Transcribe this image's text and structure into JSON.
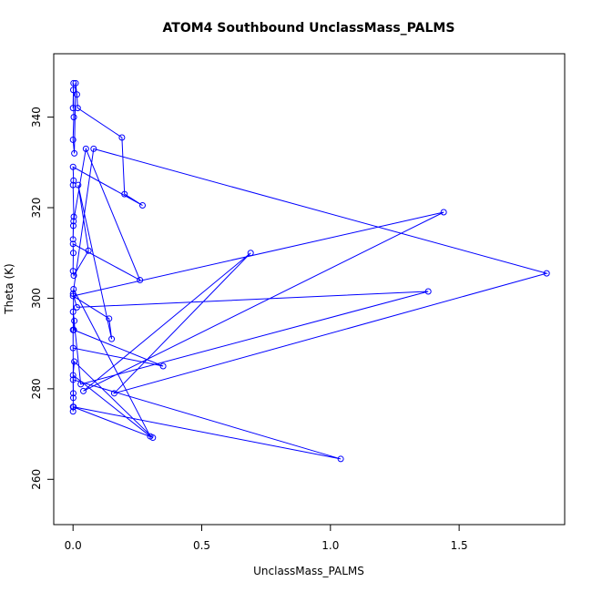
{
  "chart_data": {
    "type": "line",
    "title": "ATOM4 Southbound UnclassMass_PALMS",
    "xlabel": "UnclassMass_PALMS",
    "ylabel": "Theta (K)",
    "xlim": [
      -0.075,
      1.91
    ],
    "ylim": [
      250,
      354
    ],
    "x_ticks": [
      0.0,
      0.5,
      1.0,
      1.5
    ],
    "x_tick_labels": [
      "0.0",
      "0.5",
      "1.0",
      "1.5"
    ],
    "y_ticks": [
      260,
      280,
      300,
      320,
      340
    ],
    "y_tick_labels": [
      "260",
      "280",
      "300",
      "320",
      "340"
    ],
    "grid": false,
    "marker": "open-circle",
    "series_color": "#0000ff",
    "series": [
      {
        "x": [
          0.0,
          0.002,
          0.001,
          0.003,
          0.0,
          0.005,
          0.01,
          0.015,
          0.018,
          0.19,
          0.2,
          0.27,
          0.0,
          0.002,
          0.0,
          0.003,
          0.001,
          0.0,
          0.002,
          0.05,
          0.26,
          0.0,
          0.001,
          0.0,
          0.003,
          0.06,
          0.02,
          0.15,
          0.14,
          0.0,
          1.44,
          0.04,
          0.69,
          0.16,
          1.84,
          0.08,
          0.0,
          0.015,
          1.38,
          0.03,
          0.0,
          0.005,
          0.003,
          0.35,
          0.0,
          0.002,
          0.3,
          0.0,
          0.005,
          0.31,
          0.0,
          0.001,
          0.0,
          1.04,
          0.002,
          0.0,
          0.001,
          0.0
        ],
        "y": [
          342,
          347.5,
          346,
          340,
          335,
          332,
          347.5,
          345,
          342,
          335.5,
          323,
          320.5,
          329,
          326,
          325,
          318,
          316,
          313,
          317,
          333,
          304,
          312,
          310,
          306,
          305,
          310.5,
          325,
          291,
          295.5,
          300.5,
          319,
          279.5,
          310,
          279,
          305.5,
          333,
          301,
          298,
          301.5,
          281,
          297,
          295,
          293,
          285,
          289,
          302,
          269.5,
          283,
          286,
          269.2,
          276,
          278,
          282,
          264.5,
          276,
          275,
          279,
          293
        ]
      }
    ]
  }
}
